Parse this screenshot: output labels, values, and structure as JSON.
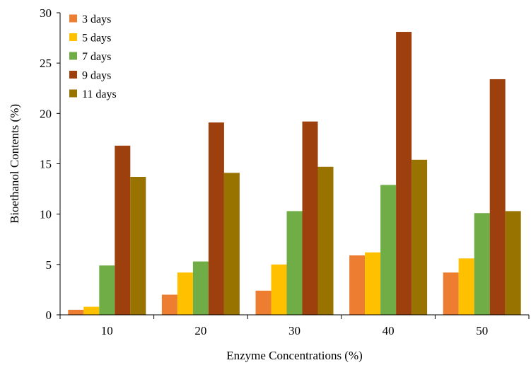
{
  "chart_data": {
    "type": "bar",
    "title": "",
    "xlabel": "Enzyme  Concentrations  (%)",
    "ylabel": "Bioethanol  Contents  (%)",
    "ylim": [
      0,
      30
    ],
    "yticks": [
      0,
      5,
      10,
      15,
      20,
      25,
      30
    ],
    "grid": false,
    "legend_position": "top-left",
    "categories": [
      "10",
      "20",
      "30",
      "40",
      "50"
    ],
    "series": [
      {
        "name": "3 days",
        "color": "#ED7D31",
        "values": [
          0.5,
          2.0,
          2.4,
          5.9,
          4.2
        ]
      },
      {
        "name": "5 days",
        "color": "#FFC000",
        "values": [
          0.8,
          4.2,
          5.0,
          6.2,
          5.6
        ]
      },
      {
        "name": "7 days",
        "color": "#70AD47",
        "values": [
          4.9,
          5.3,
          10.3,
          12.9,
          10.1
        ]
      },
      {
        "name": "9 days",
        "color": "#9E400E",
        "values": [
          16.8,
          19.1,
          19.2,
          28.1,
          23.4
        ]
      },
      {
        "name": "11 days",
        "color": "#997300",
        "values": [
          13.7,
          14.1,
          14.7,
          15.4,
          10.3
        ]
      }
    ]
  }
}
